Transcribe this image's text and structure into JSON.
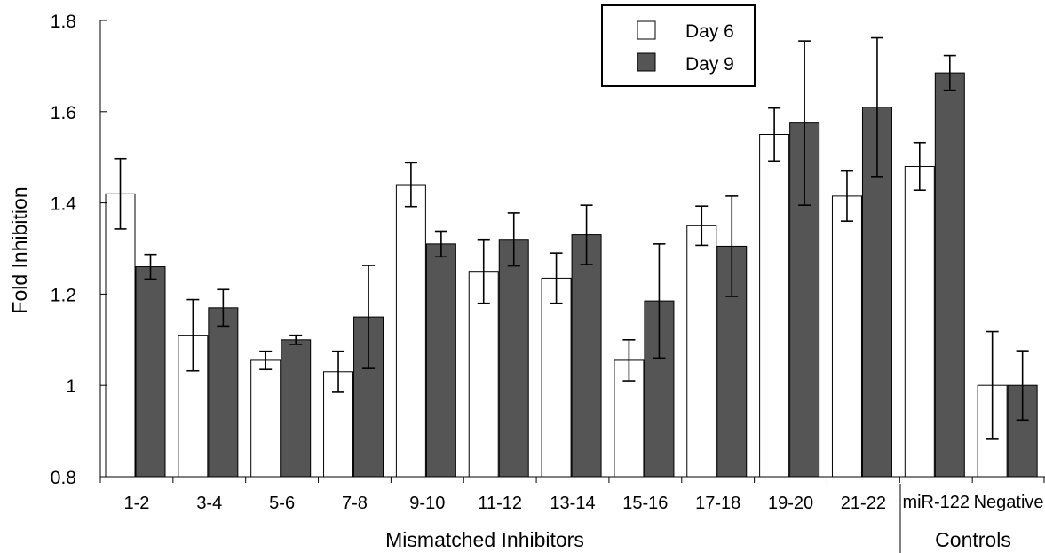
{
  "chart_data": {
    "type": "bar",
    "ylabel": "Fold Inhibition",
    "xlabel": "Mismatched Inhibitors",
    "group_label_2": "Controls",
    "ylim": [
      0.8,
      1.8
    ],
    "yticks": [
      "0.8",
      "1",
      "1.2",
      "1.4",
      "1.6",
      "1.8"
    ],
    "ytick_values": [
      0.8,
      1.0,
      1.2,
      1.4,
      1.6,
      1.8
    ],
    "categories": [
      "1-2",
      "3-4",
      "5-6",
      "7-8",
      "9-10",
      "11-12",
      "13-14",
      "15-16",
      "17-18",
      "19-20",
      "21-22",
      "miR-122",
      "Negative"
    ],
    "legend_position": "top-center",
    "series": [
      {
        "name": "Day 6",
        "color": "#ffffff",
        "values": [
          1.42,
          1.11,
          1.055,
          1.03,
          1.44,
          1.25,
          1.235,
          1.055,
          1.35,
          1.55,
          1.415,
          1.48,
          1.0
        ],
        "errors": [
          0.077,
          0.078,
          0.02,
          0.045,
          0.048,
          0.07,
          0.055,
          0.045,
          0.043,
          0.058,
          0.055,
          0.052,
          0.118
        ]
      },
      {
        "name": "Day 9",
        "color": "#555555",
        "values": [
          1.26,
          1.17,
          1.1,
          1.15,
          1.31,
          1.32,
          1.33,
          1.185,
          1.305,
          1.575,
          1.61,
          1.685,
          1.0
        ],
        "errors": [
          0.027,
          0.04,
          0.01,
          0.113,
          0.028,
          0.058,
          0.065,
          0.125,
          0.11,
          0.18,
          0.152,
          0.038,
          0.076
        ]
      }
    ]
  }
}
